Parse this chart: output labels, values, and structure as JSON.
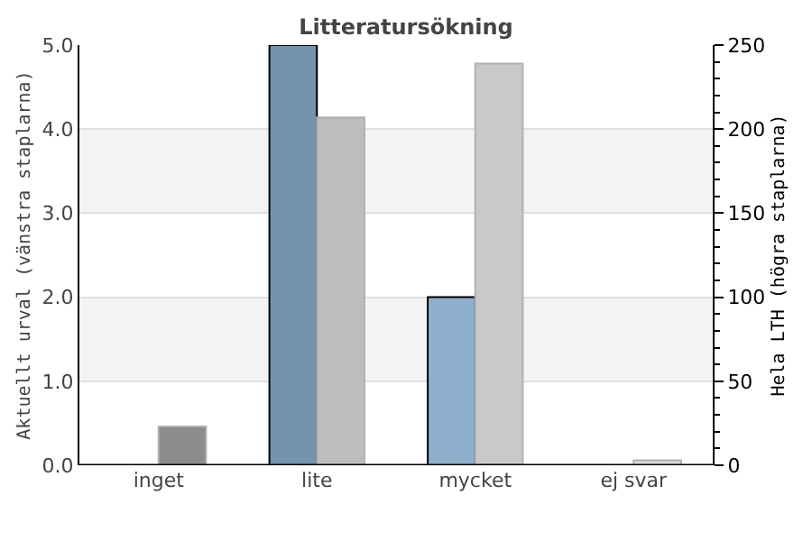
{
  "chart_data": {
    "type": "bar",
    "title": "Litteratursökning",
    "ylabel": "Aktuellt urval (vänstra staplarna)",
    "y2label": "Hela LTH (högra staplarna)",
    "categories": [
      "inget",
      "lite",
      "mycket",
      "ej svar"
    ],
    "series": [
      {
        "values": [
          0,
          5.0,
          2.0,
          0
        ],
        "colors": [
          "#7393ae",
          "#7393ae",
          "#8fb0cc",
          "#8fb0cc"
        ]
      },
      {
        "axis": "y2",
        "values": [
          23,
          207,
          239,
          3
        ],
        "colors": [
          "#8c8c8c",
          "#bdbdbd",
          "#c9c9c9",
          "#dcdcdc"
        ]
      }
    ],
    "ylim": [
      0,
      5
    ],
    "yticks": [
      {
        "value": 0,
        "label": "0.0"
      },
      {
        "value": 1,
        "label": "1.0"
      },
      {
        "value": 2,
        "label": "2.0"
      },
      {
        "value": 3,
        "label": "3.0"
      },
      {
        "value": 4,
        "label": "4.0"
      },
      {
        "value": 5,
        "label": "5.0"
      }
    ],
    "y2lim": [
      0,
      250
    ],
    "y2ticks": [
      0,
      {
        "value": 10,
        "label": null
      },
      {
        "value": 20,
        "label": null
      },
      {
        "value": 30,
        "label": null
      },
      {
        "value": 40,
        "label": null
      },
      50,
      {
        "value": 60,
        "label": null
      },
      {
        "value": 70,
        "label": null
      },
      {
        "value": 80,
        "label": null
      },
      {
        "value": 90,
        "label": null
      },
      100,
      {
        "value": 110,
        "label": null
      },
      {
        "value": 120,
        "label": null
      },
      {
        "value": 130,
        "label": null
      },
      {
        "value": 140,
        "label": null
      },
      150,
      {
        "value": 160,
        "label": null
      },
      {
        "value": 170,
        "label": null
      },
      {
        "value": 180,
        "label": null
      },
      {
        "value": 190,
        "label": null
      },
      200,
      {
        "value": 210,
        "label": null
      },
      {
        "value": 220,
        "label": null
      },
      {
        "value": 230,
        "label": null
      },
      {
        "value": 240,
        "label": null
      },
      250
    ],
    "bands": [
      {
        "axis": "y",
        "from": 1,
        "to": 2,
        "color": "#f3f3f3"
      },
      {
        "axis": "y",
        "from": 3,
        "to": 4,
        "color": "#f3f3f3"
      }
    ],
    "grid": "y"
  }
}
